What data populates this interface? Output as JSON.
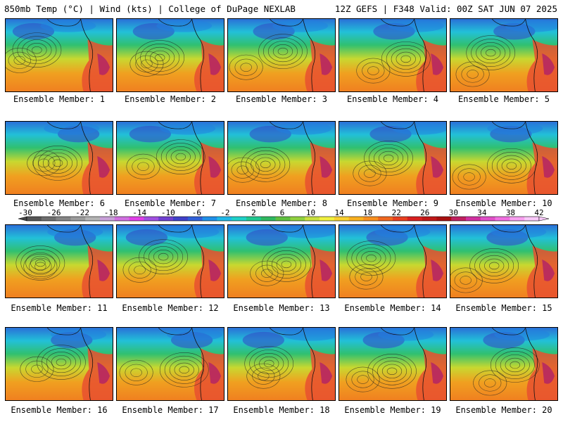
{
  "header": {
    "left": "850mb Temp (°C) | Wind (kts) | College of DuPage NEXLAB",
    "right": "12Z GEFS | F348 Valid: 00Z SAT JUN 07 2025"
  },
  "members": [
    "Ensemble Member: 1",
    "Ensemble Member: 2",
    "Ensemble Member: 3",
    "Ensemble Member: 4",
    "Ensemble Member: 5",
    "Ensemble Member: 6",
    "Ensemble Member: 7",
    "Ensemble Member: 8",
    "Ensemble Member: 9",
    "Ensemble Member: 10",
    "Ensemble Member: 11",
    "Ensemble Member: 12",
    "Ensemble Member: 13",
    "Ensemble Member: 14",
    "Ensemble Member: 15",
    "Ensemble Member: 16",
    "Ensemble Member: 17",
    "Ensemble Member: 18",
    "Ensemble Member: 19",
    "Ensemble Member: 20"
  ],
  "colorbar": {
    "labels": [
      "-30",
      "-26",
      "-22",
      "-18",
      "-14",
      "-10",
      "-6",
      "-2",
      "2",
      "6",
      "10",
      "14",
      "18",
      "22",
      "26",
      "30",
      "34",
      "38",
      "42"
    ],
    "colors": [
      "#555555",
      "#6e6e6e",
      "#858585",
      "#9c9c9c",
      "#b4b4b4",
      "#c8a0d8",
      "#d070e0",
      "#e040e8",
      "#a050e0",
      "#7040d0",
      "#4040c8",
      "#3060d8",
      "#2090e8",
      "#20b8e8",
      "#20d0c8",
      "#20c890",
      "#30b860",
      "#60c040",
      "#90d040",
      "#c8e040",
      "#f0f040",
      "#f8d030",
      "#f8b020",
      "#f89020",
      "#f06820",
      "#e84020",
      "#d82020",
      "#c01818",
      "#a81010",
      "#c02060",
      "#d030a0",
      "#e050c8",
      "#f070e0",
      "#f8a0f0",
      "#f8c8f8"
    ]
  }
}
